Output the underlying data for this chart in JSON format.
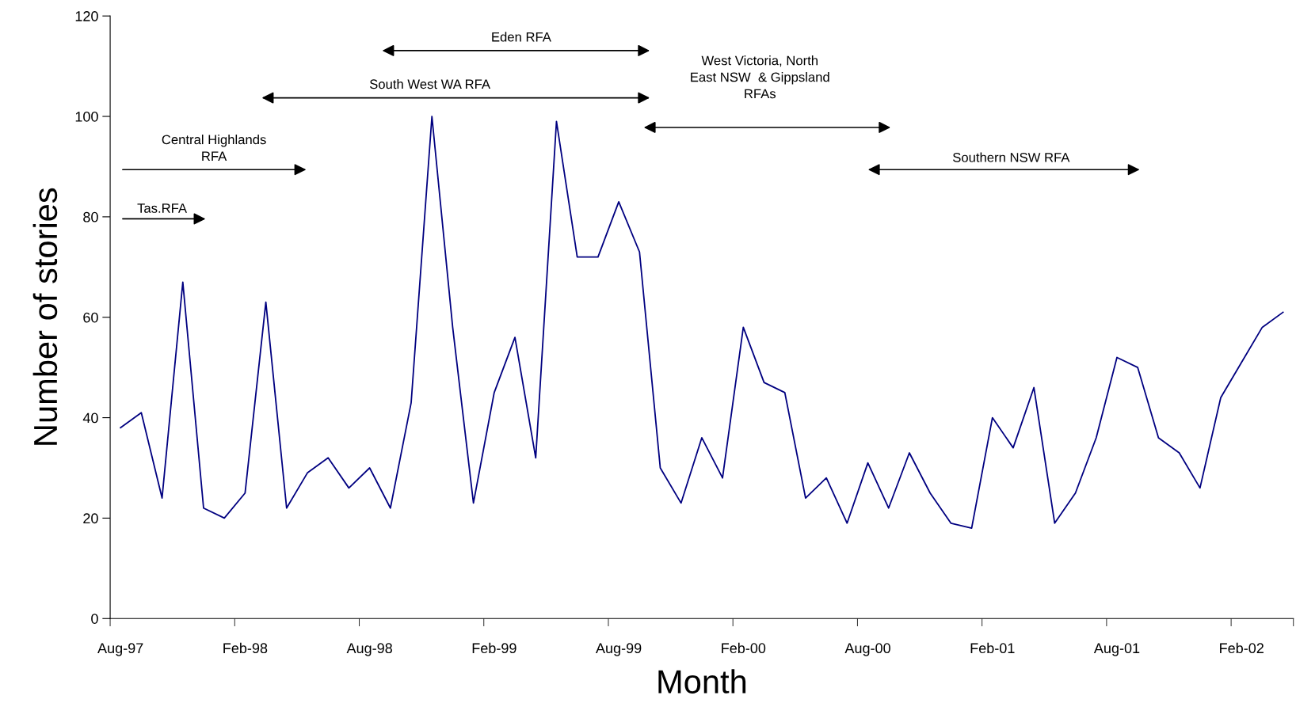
{
  "chart_data": {
    "type": "line",
    "xlabel": "Month",
    "ylabel": "Number of stories",
    "categories": [
      "Aug-97",
      null,
      null,
      null,
      null,
      null,
      "Feb-98",
      null,
      null,
      null,
      null,
      null,
      "Aug-98",
      null,
      null,
      null,
      null,
      null,
      "Feb-99",
      null,
      null,
      null,
      null,
      null,
      "Aug-99",
      null,
      null,
      null,
      null,
      null,
      "Feb-00",
      null,
      null,
      null,
      null,
      null,
      "Aug-00",
      null,
      null,
      null,
      null,
      null,
      "Feb-01",
      null,
      null,
      null,
      null,
      null,
      "Aug-01",
      null,
      null,
      null,
      null,
      null,
      "Feb-02",
      null,
      null
    ],
    "values": [
      38,
      41,
      24,
      67,
      22,
      20,
      25,
      63,
      22,
      29,
      32,
      26,
      30,
      22,
      43,
      100,
      58,
      23,
      45,
      56,
      32,
      99,
      72,
      72,
      83,
      73,
      30,
      23,
      36,
      28,
      58,
      47,
      45,
      24,
      28,
      19,
      31,
      22,
      33,
      25,
      19,
      18,
      40,
      34,
      46,
      19,
      25,
      36,
      52,
      50,
      36,
      33,
      26,
      44,
      51,
      58,
      61
    ],
    "color": "#000080",
    "ylim": [
      0,
      120
    ],
    "yticks": [
      0,
      20,
      40,
      60,
      80,
      100,
      120
    ],
    "grid": false,
    "marker": "none",
    "line_style": "solid",
    "annotations": [
      "Tas.RFA",
      "Central Highlands\nRFA",
      "South West WA RFA",
      "Eden RFA",
      "West Victoria, North\nEast NSW  & Gippsland\nRFAs",
      "Southern NSW RFA"
    ]
  }
}
